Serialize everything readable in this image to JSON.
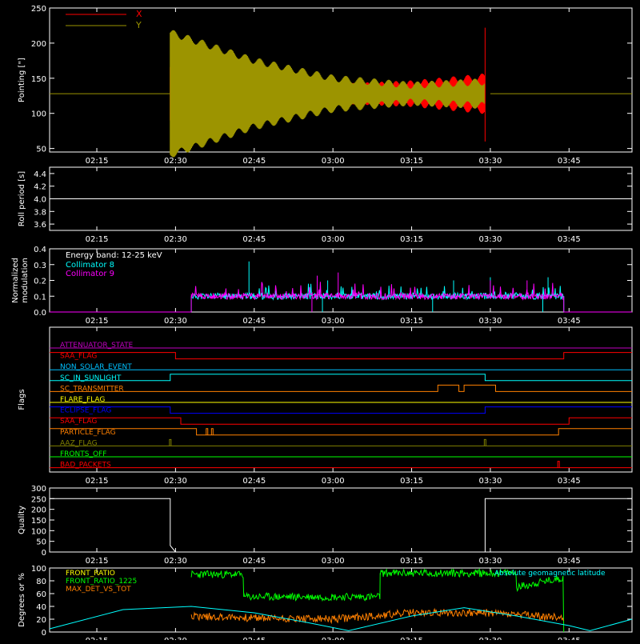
{
  "chart_data": [
    {
      "id": "pointing",
      "type": "line",
      "title": "",
      "xlabel": "",
      "ylabel": "Pointing [\"]",
      "xlim": [
        "02:06",
        "03:57"
      ],
      "ylim": [
        45,
        250
      ],
      "yticks": [
        50,
        100,
        150,
        200,
        250
      ],
      "xticks": [
        "02:15",
        "02:30",
        "02:45",
        "03:00",
        "03:15",
        "03:30",
        "03:45"
      ],
      "legend": [
        {
          "name": "X",
          "color": "#ff0000"
        },
        {
          "name": "Y",
          "color": "#9c9400"
        }
      ],
      "series": [
        {
          "name": "X",
          "color": "#ff0000",
          "points": [
            [
              "02:06",
              128
            ],
            [
              "02:29",
              128
            ],
            [
              "02:29",
              90
            ],
            [
              "02:32",
              70
            ],
            [
              "02:40",
              96
            ],
            [
              "02:50",
              118
            ],
            [
              "03:00",
              120
            ],
            [
              "03:15",
              115
            ],
            [
              "03:29",
              105
            ],
            [
              "03:29",
              222
            ],
            [
              "03:30",
              128
            ],
            [
              "03:57",
              128
            ]
          ]
        },
        {
          "name": "Y",
          "color": "#9c9400",
          "points": [
            [
              "02:06",
              128
            ],
            [
              "02:29",
              128
            ],
            [
              "02:29",
              215
            ],
            [
              "02:35",
              200
            ],
            [
              "02:45",
              175
            ],
            [
              "03:00",
              150
            ],
            [
              "03:15",
              140
            ],
            [
              "03:29",
              145
            ],
            [
              "03:29",
              60
            ],
            [
              "03:30",
              128
            ],
            [
              "03:57",
              128
            ]
          ]
        }
      ]
    },
    {
      "id": "roll",
      "type": "line",
      "ylabel": "Roll period [s]",
      "xlim": [
        "02:06",
        "03:57"
      ],
      "ylim": [
        3.5,
        4.5
      ],
      "yticks": [
        3.6,
        3.8,
        4.0,
        4.2,
        4.4
      ],
      "xticks": [
        "02:15",
        "02:30",
        "02:45",
        "03:00",
        "03:15",
        "03:30",
        "03:45"
      ],
      "series": [
        {
          "name": "",
          "color": "#ffffff",
          "points": [
            [
              "02:06",
              4.0
            ],
            [
              "03:57",
              4.0
            ]
          ]
        }
      ]
    },
    {
      "id": "modulation",
      "type": "line",
      "ylabel": "Normalized modulation",
      "xlim": [
        "02:06",
        "03:57"
      ],
      "ylim": [
        0,
        0.4
      ],
      "yticks": [
        0.0,
        0.1,
        0.2,
        0.3,
        0.4
      ],
      "xticks": [
        "02:15",
        "02:30",
        "02:45",
        "03:00",
        "03:15",
        "03:30",
        "03:45"
      ],
      "annotations": [
        "Energy band: 12-25 keV"
      ],
      "series": [
        {
          "name": "Collimator 8",
          "color": "#00ffff",
          "baseline": 0.1,
          "start": "02:33",
          "end": "03:44",
          "spikes": [
            [
              "02:44",
              0.32
            ],
            [
              "02:59",
              0.2
            ],
            [
              "03:23",
              0.2
            ],
            [
              "03:30",
              0.22
            ],
            [
              "03:41",
              0.22
            ]
          ],
          "dips": [
            [
              "02:58",
              0.0
            ],
            [
              "03:19",
              0.0
            ],
            [
              "03:40",
              0.0
            ]
          ]
        },
        {
          "name": "Collimator 9",
          "color": "#ff00ff",
          "baseline": 0.1,
          "start": "02:33",
          "end": "03:44",
          "spikes": [
            [
              "02:57",
              0.23
            ],
            [
              "03:01",
              0.25
            ],
            [
              "03:30",
              0.2
            ],
            [
              "03:37",
              0.2
            ]
          ],
          "dips": [
            [
              "02:56",
              0.0
            ]
          ]
        }
      ]
    },
    {
      "id": "flags",
      "type": "line",
      "ylabel": "Flags",
      "xlim": [
        "02:06",
        "03:57"
      ],
      "xticks": [
        "02:15",
        "02:30",
        "02:45",
        "03:00",
        "03:15",
        "03:30",
        "03:45"
      ],
      "series": [
        {
          "name": "ATTENUATOR_STATE",
          "color": "#c000c0",
          "steps": [
            [
              "02:06",
              0
            ]
          ]
        },
        {
          "name": "SAA_FLAG",
          "color": "#ff0000",
          "steps": [
            [
              "02:06",
              1
            ],
            [
              "02:30",
              0
            ],
            [
              "03:44",
              1
            ]
          ]
        },
        {
          "name": "NON_SOLAR_EVENT",
          "color": "#00c0ff",
          "steps": [
            [
              "02:06",
              0
            ]
          ]
        },
        {
          "name": "SC_IN_SUNLIGHT",
          "color": "#00ffff",
          "steps": [
            [
              "02:06",
              0
            ],
            [
              "02:29",
              1
            ],
            [
              "03:29",
              0
            ]
          ]
        },
        {
          "name": "SC_TRANSMITTER",
          "color": "#ff8000",
          "steps": [
            [
              "02:06",
              0
            ],
            [
              "03:20",
              1
            ],
            [
              "03:24",
              0
            ],
            [
              "03:25",
              1
            ],
            [
              "03:31",
              0
            ]
          ]
        },
        {
          "name": "FLARE_FLAG",
          "color": "#ffff00",
          "steps": [
            [
              "02:06",
              0
            ]
          ]
        },
        {
          "name": "ECLIPSE_FLAG",
          "color": "#0000ff",
          "steps": [
            [
              "02:06",
              1
            ],
            [
              "02:29",
              0
            ],
            [
              "03:29",
              1
            ]
          ]
        },
        {
          "name": "SAA_FLAG",
          "color": "#ff0000",
          "steps": [
            [
              "02:06",
              1
            ],
            [
              "02:31",
              0
            ],
            [
              "03:45",
              1
            ]
          ]
        },
        {
          "name": "PARTICLE_FLAG",
          "color": "#ff8000",
          "steps": [
            [
              "02:06",
              1
            ],
            [
              "02:34",
              0
            ],
            [
              "03:43",
              1
            ]
          ],
          "blips": [
            "02:36",
            "02:37"
          ]
        },
        {
          "name": "AAZ_FLAG",
          "color": "#808000",
          "steps": [
            [
              "02:06",
              0
            ]
          ],
          "blips": [
            "02:29",
            "03:29"
          ]
        },
        {
          "name": "FRONTS_OFF",
          "color": "#00ff00",
          "steps": [
            [
              "02:06",
              0
            ]
          ]
        },
        {
          "name": "BAD_PACKETS",
          "color": "#ff0000",
          "steps": [
            [
              "02:06",
              0
            ]
          ],
          "blips": [
            "03:43"
          ]
        }
      ]
    },
    {
      "id": "quality",
      "type": "line",
      "ylabel": "Quality",
      "xlim": [
        "02:06",
        "03:57"
      ],
      "ylim": [
        0,
        300
      ],
      "yticks": [
        0,
        50,
        100,
        150,
        200,
        250,
        300
      ],
      "xticks": [
        "02:15",
        "02:30",
        "02:45",
        "03:00",
        "03:15",
        "03:30",
        "03:45"
      ],
      "series": [
        {
          "name": "",
          "color": "#ffffff",
          "points": [
            [
              "02:06",
              250
            ],
            [
              "02:29",
              250
            ],
            [
              "02:29",
              30
            ],
            [
              "02:30",
              0
            ],
            [
              "03:29",
              0
            ],
            [
              "03:29",
              250
            ],
            [
              "03:57",
              250
            ]
          ]
        }
      ]
    },
    {
      "id": "ratios",
      "type": "line",
      "ylabel": "Degrees or %",
      "xlim": [
        "02:06",
        "03:57"
      ],
      "ylim": [
        0,
        100
      ],
      "yticks": [
        0,
        20,
        40,
        60,
        80,
        100
      ],
      "xticks": [
        "02:15",
        "02:30",
        "02:45",
        "03:00",
        "03:15",
        "03:30",
        "03:45"
      ],
      "legend": [
        {
          "name": "FRONT_RATIO",
          "color": "#ffff00"
        },
        {
          "name": "FRONT_RATIO_1225",
          "color": "#00ff00"
        },
        {
          "name": "MAX_DET_VS_TOT",
          "color": "#ff8000"
        }
      ],
      "annotations": [
        "Absolute geomagnetic latitude"
      ],
      "series": [
        {
          "name": "FRONT_RATIO_1225",
          "color": "#00ff00",
          "points": [
            [
              "02:33",
              90
            ],
            [
              "02:43",
              90
            ],
            [
              "02:43",
              55
            ],
            [
              "03:09",
              55
            ],
            [
              "03:09",
              92
            ],
            [
              "03:28",
              92
            ],
            [
              "03:35",
              92
            ],
            [
              "03:35",
              70
            ],
            [
              "03:44",
              85
            ],
            [
              "03:44",
              0
            ]
          ]
        },
        {
          "name": "MAX_DET_VS_TOT",
          "color": "#ff8000",
          "points": [
            [
              "02:33",
              25
            ],
            [
              "02:45",
              22
            ],
            [
              "03:00",
              20
            ],
            [
              "03:15",
              30
            ],
            [
              "03:30",
              30
            ],
            [
              "03:44",
              22
            ]
          ]
        },
        {
          "name": "Absolute geomagnetic latitude",
          "color": "#00ffff",
          "points": [
            [
              "02:06",
              5
            ],
            [
              "02:20",
              35
            ],
            [
              "02:33",
              40
            ],
            [
              "02:45",
              30
            ],
            [
              "02:55",
              15
            ],
            [
              "03:03",
              2
            ],
            [
              "03:15",
              25
            ],
            [
              "03:25",
              38
            ],
            [
              "03:35",
              25
            ],
            [
              "03:45",
              10
            ],
            [
              "03:49",
              2
            ],
            [
              "03:57",
              20
            ]
          ]
        }
      ]
    }
  ]
}
